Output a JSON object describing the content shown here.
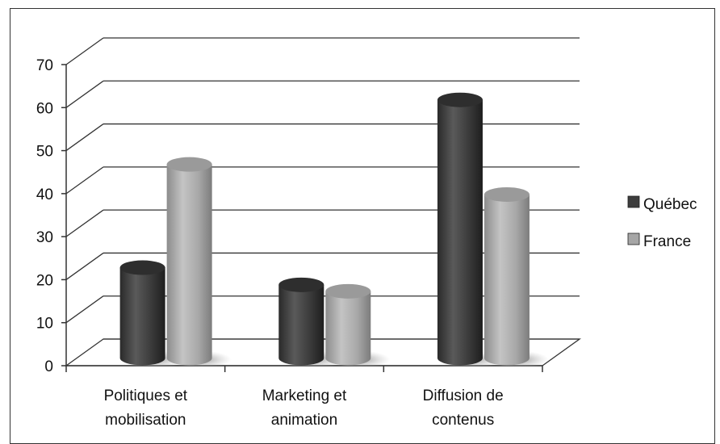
{
  "chart_data": {
    "type": "bar",
    "categories": [
      [
        "Politiques et",
        "mobilisation"
      ],
      [
        "Marketing et",
        "animation"
      ],
      [
        "Diffusion de",
        "contenus"
      ]
    ],
    "series": [
      {
        "name": "Québec",
        "values": [
          21,
          17,
          60
        ],
        "color": "#3d3d3d"
      },
      {
        "name": "France",
        "values": [
          45,
          15.5,
          38
        ],
        "color": "#a6a6a6"
      }
    ],
    "ylim": [
      0,
      70
    ],
    "yticks": [
      0,
      10,
      20,
      30,
      40,
      50,
      60,
      70
    ],
    "grid": true,
    "legend_position": "right",
    "style": "3d-cylinder"
  }
}
